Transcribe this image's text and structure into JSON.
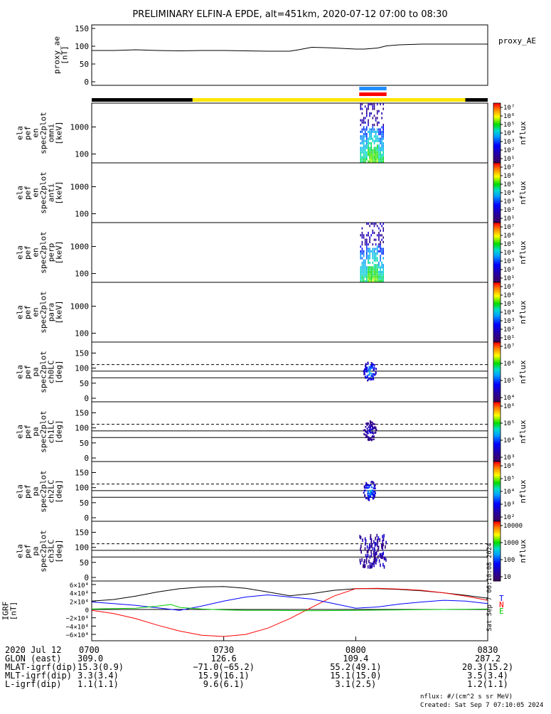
{
  "title": "PRELIMINARY ELFIN-A EPDE, alt=451km, 2020-07-12 07:00 to 08:30",
  "chart_data": [
    {
      "id": "proxy_ae",
      "type": "line",
      "ylabel_lines": [
        "proxy_ae",
        "[nT]"
      ],
      "legend": "proxy_AE",
      "yticks": [
        "150",
        "100",
        "50",
        "0"
      ],
      "ylim": [
        0,
        150
      ],
      "series": [
        {
          "name": "proxy_AE",
          "x": [
            0,
            5,
            10,
            15,
            20,
            25,
            30,
            35,
            40,
            45,
            47,
            50,
            53,
            55,
            60,
            62,
            65,
            67,
            70,
            75,
            80,
            85,
            90
          ],
          "y": [
            88,
            88,
            90,
            88,
            87,
            88,
            88,
            87,
            86,
            86,
            90,
            97,
            96,
            95,
            92,
            92,
            95,
            101,
            104,
            106,
            106,
            106,
            106
          ]
        }
      ]
    },
    {
      "id": "spec_omni",
      "type": "heatmap",
      "ylabel_lines": [
        "ela",
        "pef",
        "en",
        "spec2plot",
        "omni",
        "[keV]"
      ],
      "yticks": [
        "1000",
        "100"
      ],
      "yscale": "log",
      "colorbar": {
        "ticks": [
          "10⁷",
          "10⁶",
          "10⁵",
          "10⁴",
          "10³",
          "10²",
          "10¹"
        ],
        "label": "nflux"
      }
    },
    {
      "id": "spec_anti",
      "type": "heatmap",
      "ylabel_lines": [
        "ela",
        "pef",
        "en",
        "spec2plot",
        "anti",
        "[keV]"
      ],
      "yticks": [
        "1000",
        "100"
      ],
      "yscale": "log",
      "colorbar": {
        "ticks": [
          "10⁷",
          "10⁶",
          "10⁵",
          "10⁴",
          "10³",
          "10²",
          "10¹"
        ],
        "label": "nflux"
      }
    },
    {
      "id": "spec_perp",
      "type": "heatmap",
      "ylabel_lines": [
        "ela",
        "pef",
        "en",
        "spec2plot",
        "perp",
        "[keV]"
      ],
      "yticks": [
        "1000",
        "100"
      ],
      "yscale": "log",
      "colorbar": {
        "ticks": [
          "10⁷",
          "10⁶",
          "10⁵",
          "10⁴",
          "10³",
          "10²",
          "10¹"
        ],
        "label": "nflux"
      }
    },
    {
      "id": "spec_para",
      "type": "heatmap",
      "ylabel_lines": [
        "ela",
        "pef",
        "en",
        "spec2plot",
        "para",
        "[keV]"
      ],
      "yticks": [
        "1000",
        "100"
      ],
      "yscale": "log",
      "colorbar": {
        "ticks": [
          "10⁷",
          "10⁶",
          "10⁵",
          "10⁴",
          "10³",
          "10²",
          "10¹"
        ],
        "label": "nflux"
      }
    },
    {
      "id": "pa_ch0",
      "type": "heatmap",
      "ylabel_lines": [
        "ela",
        "pef",
        "pa",
        "spec2plot",
        "ch0LC",
        "[deg]"
      ],
      "yticks": [
        "150",
        "100",
        "50",
        "0"
      ],
      "ylim": [
        0,
        180
      ],
      "colorbar": {
        "ticks": [
          "10⁷",
          "10⁶",
          "10⁵",
          "10⁴"
        ],
        "label": "nflux"
      }
    },
    {
      "id": "pa_ch1",
      "type": "heatmap",
      "ylabel_lines": [
        "ela",
        "pef",
        "pa",
        "spec2plot",
        "ch1LC",
        "[deg]"
      ],
      "yticks": [
        "150",
        "100",
        "50",
        "0"
      ],
      "ylim": [
        0,
        180
      ],
      "colorbar": {
        "ticks": [
          "10⁶",
          "10⁵",
          "10⁴",
          "10³"
        ],
        "label": "nflux"
      }
    },
    {
      "id": "pa_ch2",
      "type": "heatmap",
      "ylabel_lines": [
        "ela",
        "pef",
        "pa",
        "spec2plot",
        "ch2LC",
        "[deg]"
      ],
      "yticks": [
        "150",
        "100",
        "50",
        "0"
      ],
      "ylim": [
        0,
        180
      ],
      "colorbar": {
        "ticks": [
          "10⁶",
          "10⁵",
          "10⁴",
          "10³",
          "10²"
        ],
        "label": "nflux"
      }
    },
    {
      "id": "pa_ch3",
      "type": "heatmap",
      "ylabel_lines": [
        "ela",
        "pef",
        "pa",
        "spec2plot",
        "ch3LC",
        "[deg]"
      ],
      "yticks": [
        "150",
        "100",
        "50",
        "0"
      ],
      "ylim": [
        0,
        180
      ],
      "colorbar": {
        "ticks": [
          "10000",
          "1000",
          "100",
          "10"
        ],
        "label": "nflux"
      }
    },
    {
      "id": "igrf",
      "type": "line",
      "ylabel_lines": [
        "IGRF",
        "[nT]"
      ],
      "yticks": [
        "6×10⁴",
        "4×10⁴",
        "2×10⁴",
        "0",
        "−2×10⁴",
        "−4×10⁴",
        "−6×10⁴"
      ],
      "ylim": [
        -65000,
        65000
      ],
      "legend": [
        "T",
        "N",
        "E"
      ],
      "series": [
        {
          "name": "T",
          "color": "#000000",
          "x": [
            0,
            5,
            10,
            15,
            20,
            25,
            30,
            35,
            40,
            45,
            50,
            55,
            60,
            65,
            70,
            75,
            80,
            85,
            90
          ],
          "y": [
            20000,
            24000,
            32000,
            42000,
            50000,
            54000,
            55000,
            51000,
            42000,
            33000,
            38000,
            46000,
            50000,
            50000,
            48000,
            45000,
            40000,
            34000,
            27000
          ]
        },
        {
          "name": "N",
          "color": "#ff0000",
          "x": [
            0,
            5,
            10,
            15,
            20,
            25,
            30,
            35,
            40,
            45,
            50,
            55,
            60,
            65,
            70,
            75,
            80,
            85,
            90
          ],
          "y": [
            -2000,
            -10000,
            -22000,
            -38000,
            -52000,
            -62000,
            -65000,
            -60000,
            -45000,
            -22000,
            5000,
            32000,
            50000,
            51000,
            49000,
            46000,
            40000,
            32000,
            22000
          ]
        },
        {
          "name": "E",
          "color": "#0000ff",
          "x": [
            0,
            5,
            10,
            15,
            20,
            25,
            30,
            35,
            40,
            45,
            50,
            55,
            60,
            65,
            70,
            75,
            80,
            85,
            90
          ],
          "y": [
            18000,
            14000,
            10000,
            4000,
            -2000,
            8000,
            20000,
            30000,
            35000,
            30000,
            25000,
            14000,
            3000,
            6000,
            13000,
            18000,
            22000,
            20000,
            14000
          ]
        },
        {
          "name": "",
          "color": "#00cc00",
          "x": [
            0,
            5,
            10,
            15,
            18,
            20,
            25,
            30,
            35,
            40,
            45,
            50,
            55,
            60,
            65,
            70,
            75,
            80,
            85,
            90
          ],
          "y": [
            1000,
            2000,
            3000,
            8000,
            12000,
            5000,
            1000,
            -1000,
            -2000,
            -2000,
            -2500,
            -3000,
            -2500,
            -2000,
            -1500,
            -1000,
            -500,
            0,
            500,
            1000
          ]
        }
      ]
    }
  ],
  "bars": {
    "science_zones": "yellow",
    "markers": [
      "blue",
      "red"
    ]
  },
  "xaxis": {
    "row_labels": [
      "2020 Jul 12",
      "GLON (east)",
      "MLAT-igrf(dip)",
      "MLT-igrf(dip)",
      "L-igrf(dip)"
    ],
    "columns": [
      [
        "0700",
        "309.0",
        "15.3(0.9)",
        "3.3(3.4)",
        "1.1(1.1)"
      ],
      [
        "0730",
        "126.6",
        "−71.0(−65.2)",
        "15.9(16.1)",
        "9.6(6.1)"
      ],
      [
        "0800",
        "109.4",
        "55.2(49.1)",
        "15.1(15.0)",
        "3.1(2.5)"
      ],
      [
        "0830",
        "287.2",
        "20.3(15.2)",
        "3.5(3.4)",
        "1.2(1.1)"
      ]
    ]
  },
  "footer": {
    "units": "nflux: #/(cm^2 s sr MeV)",
    "created": "Created: Sat Sep  7 07:10:05 2024",
    "side_stamp": "Sat Sep  7 06:10:08 2024"
  }
}
